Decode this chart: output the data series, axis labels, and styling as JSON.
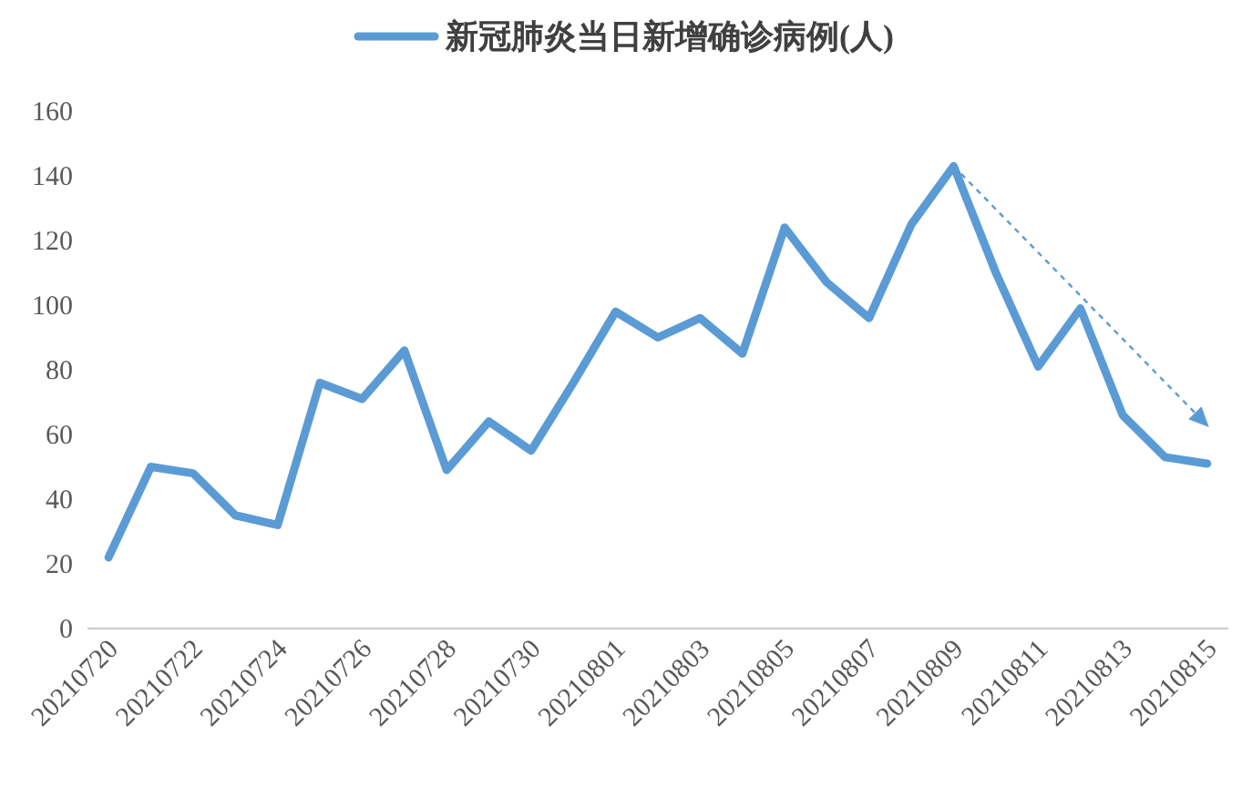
{
  "chart_data": {
    "type": "line",
    "categories": [
      "20210720",
      null,
      "20210722",
      null,
      "20210724",
      null,
      "20210726",
      null,
      "20210728",
      null,
      "20210730",
      null,
      "20210801",
      null,
      "20210803",
      null,
      "20210805",
      null,
      "20210807",
      null,
      "20210809",
      null,
      "20210811",
      null,
      "20210813",
      null,
      "20210815"
    ],
    "series": [
      {
        "name": "新冠肺炎当日新增确诊病例(人)",
        "color": "#5b9bd5",
        "values": [
          22,
          50,
          48,
          35,
          32,
          76,
          71,
          86,
          49,
          64,
          55,
          76,
          98,
          90,
          96,
          85,
          124,
          107,
          96,
          125,
          143,
          110,
          81,
          99,
          66,
          53,
          51
        ]
      }
    ],
    "ylim": [
      0,
      160
    ],
    "yticks": [
      0,
      20,
      40,
      60,
      80,
      100,
      120,
      140,
      160
    ],
    "legend": "top",
    "grid": false,
    "marker": "none",
    "line_style": "solid"
  }
}
